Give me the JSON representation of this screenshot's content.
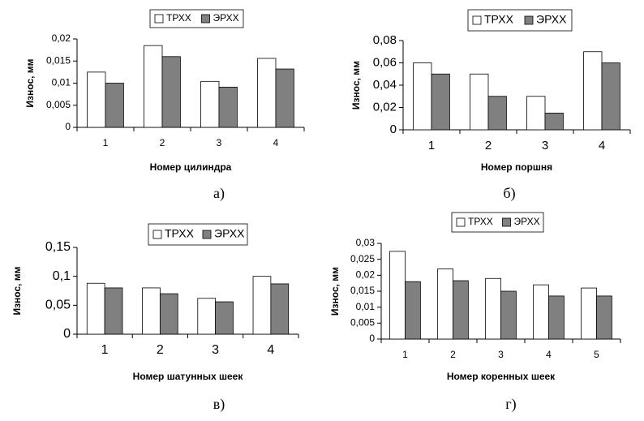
{
  "chart_data": [
    {
      "type": "bar",
      "caption": "а)",
      "x_label": "Номер цилиндра",
      "y_label": "Износ, мм",
      "categories": [
        "1",
        "2",
        "3",
        "4"
      ],
      "series": [
        {
          "name": "ТРХХ",
          "color": "#ffffff",
          "values": [
            0.0125,
            0.0185,
            0.0104,
            0.0156
          ]
        },
        {
          "name": "ЭРХХ",
          "color": "#808080",
          "values": [
            0.01,
            0.016,
            0.0091,
            0.0132
          ]
        }
      ],
      "ylim": [
        0,
        0.02
      ],
      "yticks": [
        0,
        {
          "value": 0.005,
          "label": "0,005"
        },
        {
          "value": 0.01,
          "label": "0,01"
        },
        {
          "value": 0.015,
          "label": "0,015"
        },
        {
          "value": 0.02,
          "label": "0,02"
        }
      ]
    },
    {
      "type": "bar",
      "caption": "б)",
      "x_label": "Номер поршня",
      "y_label": "Износ, мм",
      "categories": [
        "1",
        "2",
        "3",
        "4"
      ],
      "series": [
        {
          "name": "ТРХХ",
          "color": "#ffffff",
          "values": [
            0.06,
            0.05,
            0.03,
            0.07
          ]
        },
        {
          "name": "ЭРХХ",
          "color": "#808080",
          "values": [
            0.05,
            0.03,
            0.015,
            0.06
          ]
        }
      ],
      "ylim": [
        0,
        0.08
      ],
      "yticks": [
        0,
        {
          "value": 0.02,
          "label": "0,02"
        },
        {
          "value": 0.04,
          "label": "0,04"
        },
        {
          "value": 0.06,
          "label": "0,06"
        },
        {
          "value": 0.08,
          "label": "0,08"
        }
      ]
    },
    {
      "type": "bar",
      "caption": "в)",
      "x_label": "Номер шатунных шеек",
      "y_label": "Износ, мм",
      "categories": [
        "1",
        "2",
        "3",
        "4"
      ],
      "series": [
        {
          "name": "ТРХХ",
          "color": "#ffffff",
          "values": [
            0.088,
            0.08,
            0.062,
            0.1
          ]
        },
        {
          "name": "ЭРХХ",
          "color": "#808080",
          "values": [
            0.08,
            0.07,
            0.056,
            0.087
          ]
        }
      ],
      "ylim": [
        0,
        0.15
      ],
      "yticks": [
        0,
        {
          "value": 0.05,
          "label": "0,05"
        },
        {
          "value": 0.1,
          "label": "0,1"
        },
        {
          "value": 0.15,
          "label": "0,15"
        }
      ]
    },
    {
      "type": "bar",
      "caption": "г)",
      "x_label": "Номер коренных шеек",
      "y_label": "Износ, мм",
      "categories": [
        "1",
        "2",
        "3",
        "4",
        "5"
      ],
      "series": [
        {
          "name": "ТРХХ",
          "color": "#ffffff",
          "values": [
            0.0275,
            0.022,
            0.019,
            0.017,
            0.016
          ]
        },
        {
          "name": "ЭРХХ",
          "color": "#808080",
          "values": [
            0.018,
            0.0183,
            0.015,
            0.0135,
            0.0135
          ]
        }
      ],
      "ylim": [
        0,
        0.03
      ],
      "yticks": [
        0,
        {
          "value": 0.005,
          "label": "0,005"
        },
        {
          "value": 0.01,
          "label": "0,01"
        },
        {
          "value": 0.015,
          "label": "0,015"
        },
        {
          "value": 0.02,
          "label": "0,02"
        },
        {
          "value": 0.025,
          "label": "0,025"
        },
        {
          "value": 0.03,
          "label": "0,03"
        }
      ]
    }
  ]
}
